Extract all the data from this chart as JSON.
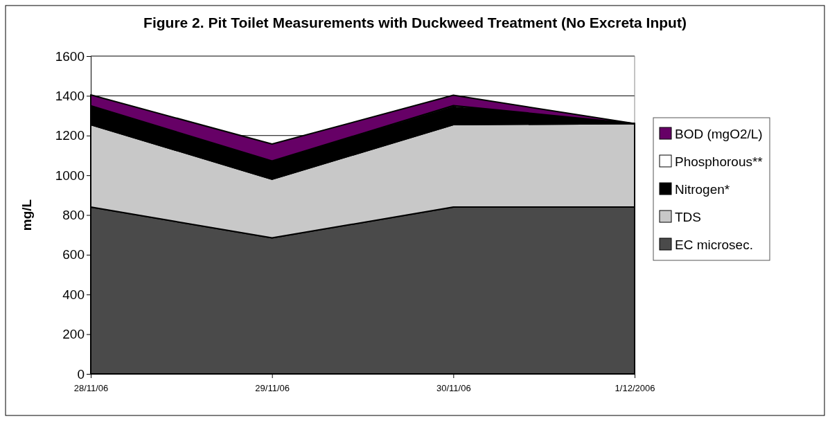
{
  "chart_data": {
    "type": "area",
    "stacked": true,
    "title": "Figure 2. Pit Toilet Measurements with Duckweed Treatment (No Excreta Input)",
    "ylabel": "mg/L",
    "categories": [
      "28/11/06",
      "29/11/06",
      "30/11/06",
      "1/12/2006"
    ],
    "series": [
      {
        "name": "EC microsec.",
        "color": "#4a4a4a",
        "values": [
          840,
          685,
          840,
          840
        ]
      },
      {
        "name": "TDS",
        "color": "#c8c8c8",
        "values": [
          415,
          295,
          415,
          420
        ]
      },
      {
        "name": "Nitrogen*",
        "color": "#000000",
        "values": [
          90,
          85,
          88,
          0
        ]
      },
      {
        "name": "Phosphorous**",
        "color": "#ffffff",
        "values": [
          5,
          7,
          8,
          0
        ]
      },
      {
        "name": "BOD (mgO2/L)",
        "color": "#660066",
        "values": [
          55,
          85,
          52,
          0
        ]
      }
    ],
    "ylim": [
      0,
      1600
    ],
    "yticks": [
      0,
      200,
      400,
      600,
      800,
      1000,
      1200,
      1400,
      1600
    ],
    "grid": "y",
    "legend": "right"
  }
}
